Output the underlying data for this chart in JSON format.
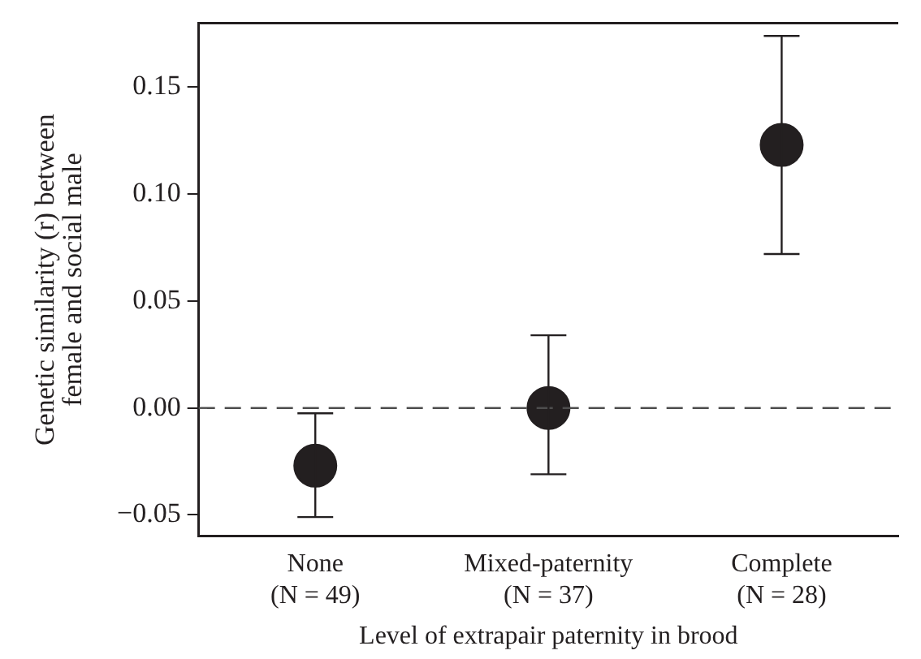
{
  "chart_data": {
    "type": "scatter",
    "xlabel": "Level of extrapair paternity in brood",
    "ylabel": "Genetic similarity (r) between\nfemale and social male",
    "categories": [
      "None\n(N = 49)",
      "Mixed-paternity\n(N = 37)",
      "Complete\n(N = 28)"
    ],
    "values": [
      -0.027,
      0.0,
      0.123
    ],
    "errors": [
      [
        -0.051,
        -0.0025
      ],
      [
        -0.031,
        0.034
      ],
      [
        0.072,
        0.174
      ]
    ],
    "color": "#231f20",
    "marker": "circle",
    "ylim": [
      -0.06,
      0.18
    ],
    "yticks": [
      {
        "value": -0.05,
        "label": "−0.05"
      },
      {
        "value": 0,
        "label": "0.00"
      },
      {
        "value": 0.05,
        "label": "0.05"
      },
      {
        "value": 0.1,
        "label": "0.10"
      },
      {
        "value": 0.15,
        "label": "0.15"
      }
    ],
    "ref_lines": [
      {
        "axis": "y",
        "value": 0,
        "label": null,
        "color": "#4d4d4d",
        "line_style": "dashed"
      }
    ],
    "grid": false,
    "legend": false
  }
}
